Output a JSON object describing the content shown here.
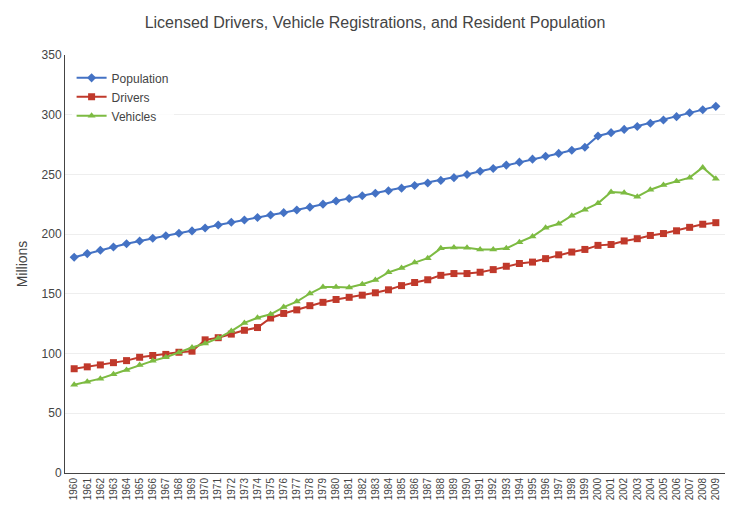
{
  "chart_data": {
    "type": "line",
    "title": "Licensed Drivers, Vehicle Registrations, and Resident Population",
    "y_label": "Millions",
    "x": [
      1960,
      1961,
      1962,
      1963,
      1964,
      1965,
      1966,
      1967,
      1968,
      1969,
      1970,
      1971,
      1972,
      1973,
      1974,
      1975,
      1976,
      1977,
      1978,
      1979,
      1980,
      1981,
      1982,
      1983,
      1984,
      1985,
      1986,
      1987,
      1988,
      1989,
      1990,
      1991,
      1992,
      1993,
      1994,
      1995,
      1996,
      1997,
      1998,
      1999,
      2000,
      2001,
      2002,
      2003,
      2004,
      2005,
      2006,
      2007,
      2008,
      2009
    ],
    "series": [
      {
        "name": "Population",
        "color": "#4472c4",
        "marker": "diamond",
        "values": [
          180.7,
          183.7,
          186.5,
          189.2,
          191.9,
          194.3,
          196.6,
          198.7,
          200.7,
          202.7,
          205.1,
          207.7,
          209.9,
          211.9,
          213.9,
          216.0,
          218.0,
          220.2,
          222.6,
          225.1,
          227.7,
          229.9,
          232.2,
          234.3,
          236.3,
          238.5,
          240.7,
          242.8,
          245.0,
          247.3,
          249.9,
          252.6,
          255.0,
          257.8,
          260.3,
          262.8,
          265.2,
          267.6,
          270.2,
          272.7,
          282.2,
          285.0,
          287.7,
          290.1,
          292.9,
          295.6,
          298.4,
          301.6,
          304.1,
          307.0
        ]
      },
      {
        "name": "Drivers",
        "color": "#c0392b",
        "marker": "square",
        "values": [
          87.3,
          88.9,
          90.5,
          92.4,
          94.1,
          96.9,
          98.4,
          99.3,
          101.1,
          102.0,
          111.5,
          113.3,
          116.3,
          119.5,
          121.8,
          129.8,
          133.6,
          136.6,
          140.1,
          142.9,
          145.3,
          147.1,
          148.9,
          150.9,
          153.4,
          156.9,
          159.5,
          161.8,
          165.5,
          167.0,
          167.0,
          168.1,
          170.3,
          173.1,
          175.4,
          176.6,
          179.5,
          182.7,
          185.0,
          187.2,
          190.6,
          191.3,
          194.3,
          196.2,
          198.9,
          200.5,
          202.8,
          205.7,
          208.3,
          209.6
        ]
      },
      {
        "name": "Vehicles",
        "color": "#7dbb42",
        "marker": "triangle-up",
        "values": [
          73.9,
          76.4,
          79.0,
          82.7,
          86.3,
          90.4,
          93.9,
          96.9,
          101.0,
          105.1,
          108.4,
          113.0,
          118.8,
          125.7,
          130.0,
          132.9,
          138.9,
          143.5,
          150.3,
          155.8,
          155.8,
          155.4,
          158.0,
          161.6,
          168.0,
          171.7,
          176.2,
          179.9,
          188.1,
          188.8,
          188.7,
          187.2,
          187.1,
          188.1,
          193.3,
          198.0,
          205.4,
          208.7,
          215.5,
          220.5,
          225.8,
          235.3,
          234.6,
          231.4,
          237.2,
          241.2,
          244.2,
          247.3,
          255.9,
          246.3
        ]
      }
    ],
    "xlim": [
      1959.3,
      2009.7
    ],
    "xticks": [
      1960,
      1961,
      1962,
      1963,
      1964,
      1965,
      1966,
      1967,
      1968,
      1969,
      1970,
      1971,
      1972,
      1973,
      1974,
      1975,
      1976,
      1977,
      1978,
      1979,
      1980,
      1981,
      1982,
      1983,
      1984,
      1985,
      1986,
      1987,
      1988,
      1989,
      1990,
      1991,
      1992,
      1993,
      1994,
      1995,
      1996,
      1997,
      1998,
      1999,
      2000,
      2001,
      2002,
      2003,
      2004,
      2005,
      2006,
      2007,
      2008,
      2009
    ],
    "ylim": [
      0,
      350
    ],
    "yticks": [
      0,
      50,
      100,
      150,
      200,
      250,
      300,
      350
    ],
    "grid": "y",
    "legend": "upper left"
  }
}
